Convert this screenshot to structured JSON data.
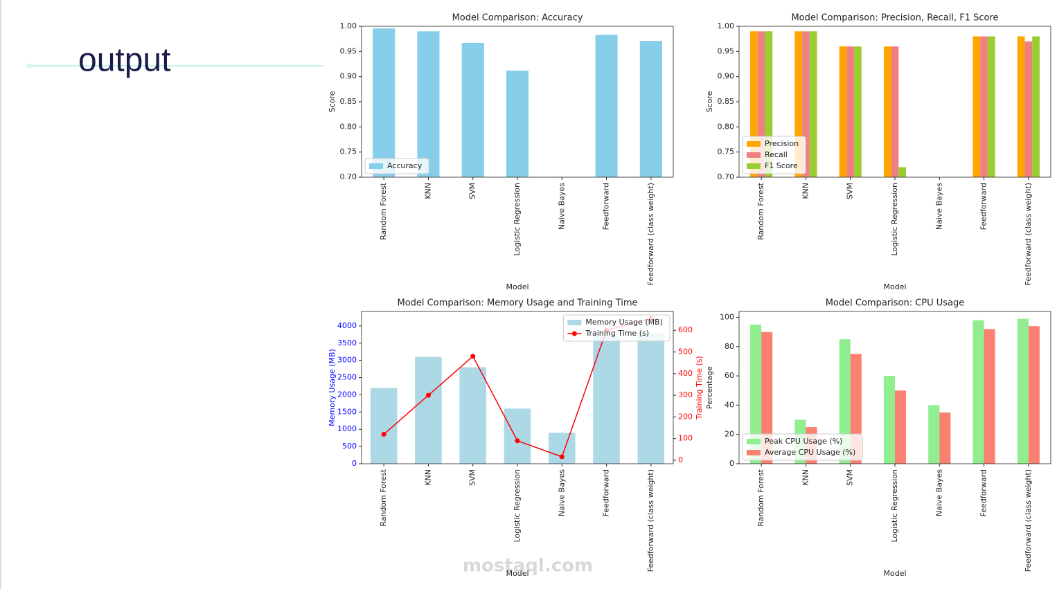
{
  "heading": "output",
  "watermark": "mostaql.com",
  "chart_data": [
    {
      "type": "bar",
      "title": "Model Comparison: Accuracy",
      "xlabel": "Model",
      "ylabel": "Score",
      "categories": [
        "Random Forest",
        "KNN",
        "SVM",
        "Logistic Regression",
        "Naive Bayes",
        "Feedforward",
        "Feedforward (class weight)"
      ],
      "series": [
        {
          "name": "Accuracy",
          "color": "#87ceeb",
          "values": [
            0.996,
            0.99,
            0.967,
            0.912,
            null,
            0.983,
            0.971
          ]
        }
      ],
      "ylim": [
        0.7,
        1.0
      ],
      "yticks": [
        {
          "value": 0.7,
          "label": "0.70"
        },
        {
          "value": 0.75,
          "label": "0.75"
        },
        {
          "value": 0.8,
          "label": "0.80"
        },
        {
          "value": 0.85,
          "label": "0.85"
        },
        {
          "value": 0.9,
          "label": "0.90"
        },
        {
          "value": 0.95,
          "label": "0.95"
        },
        {
          "value": 1.0,
          "label": "1.00"
        }
      ],
      "legend": "lower left"
    },
    {
      "type": "bar",
      "title": "Model Comparison: Precision, Recall, F1 Score",
      "xlabel": "Model",
      "ylabel": "Score",
      "categories": [
        "Random Forest",
        "KNN",
        "SVM",
        "Logistic Regression",
        "Naive Bayes",
        "Feedforward",
        "Feedforward (class weight)"
      ],
      "series": [
        {
          "name": "Precision",
          "color": "#ffa500",
          "values": [
            0.99,
            0.99,
            0.96,
            0.96,
            null,
            0.98,
            0.98
          ]
        },
        {
          "name": "Recall",
          "color": "#f08080",
          "values": [
            0.99,
            0.99,
            0.96,
            0.96,
            null,
            0.98,
            0.97
          ]
        },
        {
          "name": "F1 Score",
          "color": "#9acd32",
          "values": [
            0.99,
            0.99,
            0.96,
            0.72,
            null,
            0.98,
            0.98
          ]
        }
      ],
      "ylim": [
        0.7,
        1.0
      ],
      "yticks": [
        {
          "value": 0.7,
          "label": "0.70"
        },
        {
          "value": 0.75,
          "label": "0.75"
        },
        {
          "value": 0.8,
          "label": "0.80"
        },
        {
          "value": 0.85,
          "label": "0.85"
        },
        {
          "value": 0.9,
          "label": "0.90"
        },
        {
          "value": 0.95,
          "label": "0.95"
        },
        {
          "value": 1.0,
          "label": "1.00"
        }
      ],
      "legend": "lower left"
    },
    {
      "type": "combo",
      "title": "Model Comparison: Memory Usage and Training Time",
      "xlabel": "Model",
      "ylabel": "Memory Usage (MB)",
      "ylabel_color": "#0000ff",
      "y2label": "Training Time (s)",
      "y2label_color": "#ff0000",
      "categories": [
        "Random Forest",
        "KNN",
        "SVM",
        "Logistic Regression",
        "Naive Bayes",
        "Feedforward",
        "Feedforward (class weight)"
      ],
      "series": [
        {
          "name": "Memory Usage (MB)",
          "color": "#add8e6",
          "values": [
            2200,
            3100,
            2800,
            1600,
            900,
            3700,
            3800
          ]
        },
        {
          "name": "Training Time (s)",
          "color": "#ff0000",
          "axis": "y2",
          "values": [
            120,
            300,
            480,
            90,
            16,
            600,
            655
          ]
        }
      ],
      "ylim": [
        0,
        4420
      ],
      "yticks": [
        0,
        500,
        1000,
        1500,
        2000,
        2500,
        3000,
        3500,
        4000
      ],
      "y2lim": [
        -16,
        687
      ],
      "y2ticks": [
        0,
        100,
        200,
        300,
        400,
        500,
        600
      ],
      "legend": "upper right"
    },
    {
      "type": "bar",
      "title": "Model Comparison: CPU Usage",
      "xlabel": "Model",
      "ylabel": "Percentage",
      "categories": [
        "Random Forest",
        "KNN",
        "SVM",
        "Logistic Regression",
        "Naive Bayes",
        "Feedforward",
        "Feedforward (class weight)"
      ],
      "series": [
        {
          "name": "Peak CPU Usage (%)",
          "color": "#90ee90",
          "values": [
            95,
            30,
            85,
            60,
            40,
            98,
            99
          ]
        },
        {
          "name": "Average CPU Usage (%)",
          "color": "#fa8072",
          "values": [
            90,
            25,
            75,
            50,
            35,
            92,
            94
          ]
        }
      ],
      "ylim": [
        0,
        104
      ],
      "yticks": [
        0,
        20,
        40,
        60,
        80,
        100
      ],
      "legend": "lower left"
    }
  ]
}
